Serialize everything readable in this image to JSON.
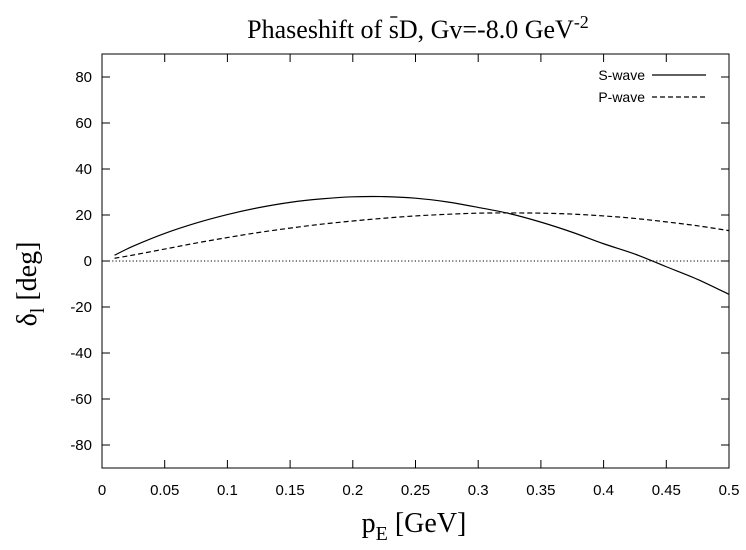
{
  "chart_data": {
    "type": "line",
    "title": {
      "text": "Phaseshift of ",
      "sbar": "s",
      "after": "D, Gv=-8.0 GeV",
      "sup": "-2"
    },
    "xlabel": {
      "main": "p",
      "sub": "E",
      "rest": " [GeV]"
    },
    "ylabel": {
      "main": "δ",
      "sub": "l",
      "rest": " [deg]"
    },
    "xlim": [
      0,
      0.5
    ],
    "ylim": [
      -90,
      90
    ],
    "xticks": [
      0,
      0.05,
      0.1,
      0.15,
      0.2,
      0.25,
      0.3,
      0.35,
      0.4,
      0.45,
      0.5
    ],
    "xtick_labels": [
      "0",
      "0.05",
      "0.1",
      "0.15",
      "0.2",
      "0.25",
      "0.3",
      "0.35",
      "0.4",
      "0.45",
      "0.5"
    ],
    "yticks": [
      -80,
      -60,
      -40,
      -20,
      0,
      20,
      40,
      60,
      80
    ],
    "ytick_labels": [
      "-80",
      "-60",
      "-40",
      "-20",
      "0",
      "20",
      "40",
      "60",
      "80"
    ],
    "zero_line": true,
    "grid": false,
    "legend_position": "top-right",
    "series": [
      {
        "name": "S-wave",
        "style": "solid",
        "x": [
          0.01,
          0.025,
          0.05,
          0.075,
          0.1,
          0.125,
          0.15,
          0.175,
          0.2,
          0.225,
          0.25,
          0.275,
          0.3,
          0.325,
          0.35,
          0.375,
          0.4,
          0.425,
          0.45,
          0.475,
          0.5
        ],
        "y": [
          2.5,
          6.5,
          12.0,
          16.5,
          20.2,
          23.2,
          25.5,
          27.0,
          27.9,
          28.0,
          27.3,
          25.7,
          23.3,
          20.6,
          16.9,
          12.5,
          7.5,
          3.0,
          -2.5,
          -8.0,
          -14.5
        ]
      },
      {
        "name": "P-wave",
        "style": "dashed",
        "x": [
          0.01,
          0.025,
          0.05,
          0.075,
          0.1,
          0.125,
          0.15,
          0.175,
          0.2,
          0.225,
          0.25,
          0.275,
          0.3,
          0.325,
          0.35,
          0.375,
          0.4,
          0.425,
          0.45,
          0.475,
          0.5
        ],
        "y": [
          1.2,
          2.6,
          5.2,
          7.8,
          10.2,
          12.4,
          14.3,
          16.0,
          17.4,
          18.6,
          19.6,
          20.3,
          20.8,
          20.9,
          20.8,
          20.4,
          19.6,
          18.5,
          17.0,
          15.3,
          13.2
        ]
      }
    ]
  }
}
